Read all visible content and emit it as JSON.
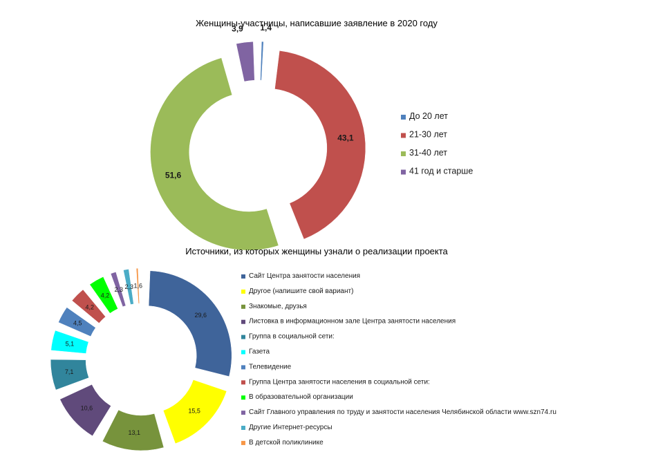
{
  "chart_data": [
    {
      "type": "pie",
      "variant": "exploded-donut",
      "title": "Женщины-участницы, написавшие заявление в 2020 году",
      "legend_position": "right",
      "categories": [
        "До 20 лет",
        "21-30 лет",
        "31-40 лет",
        "41 год и старше"
      ],
      "values": [
        1.4,
        43.1,
        51.6,
        3.9
      ],
      "value_labels": [
        "1,4",
        "43,1",
        "51,6",
        "3,9"
      ],
      "colors": [
        "#4f81bd",
        "#c0504d",
        "#9bbb59",
        "#8064a2"
      ]
    },
    {
      "type": "pie",
      "variant": "exploded-donut",
      "title": "Источники, из которых женщины узнали о реализации проекта",
      "legend_position": "right",
      "categories": [
        "Сайт Центра занятости населения",
        "Другое (напишите свой вариант)",
        "Знакомые, друзья",
        "Листовка в информационном зале Центра занятости населения",
        "Группа в социальной сети:",
        "Газета",
        "Телевидение",
        "Группа Центра занятости населения в социальной сети:",
        "В образовательной организации",
        "Сайт Главного управления по труду и занятости населения Челябинской области www.szn74.ru",
        "Другие Интернет-ресурсы",
        "В детской поликлинике"
      ],
      "values": [
        29.6,
        15.5,
        13.1,
        10.6,
        7.1,
        5.1,
        4.5,
        4.2,
        4.2,
        2.3,
        2.3,
        1.6
      ],
      "value_labels": [
        "29,6",
        "15,5",
        "13,1",
        "10,6",
        "7,1",
        "5,1",
        "4,5",
        "4,2",
        "4,2",
        "2,3",
        "2,3",
        "1,6"
      ],
      "colors": [
        "#3f649a",
        "#ffff00",
        "#77933c",
        "#604a7b",
        "#31859c",
        "#00ffff",
        "#4f81bd",
        "#c0504d",
        "#00ff00",
        "#8064a2",
        "#4bacc6",
        "#f79646"
      ]
    }
  ]
}
